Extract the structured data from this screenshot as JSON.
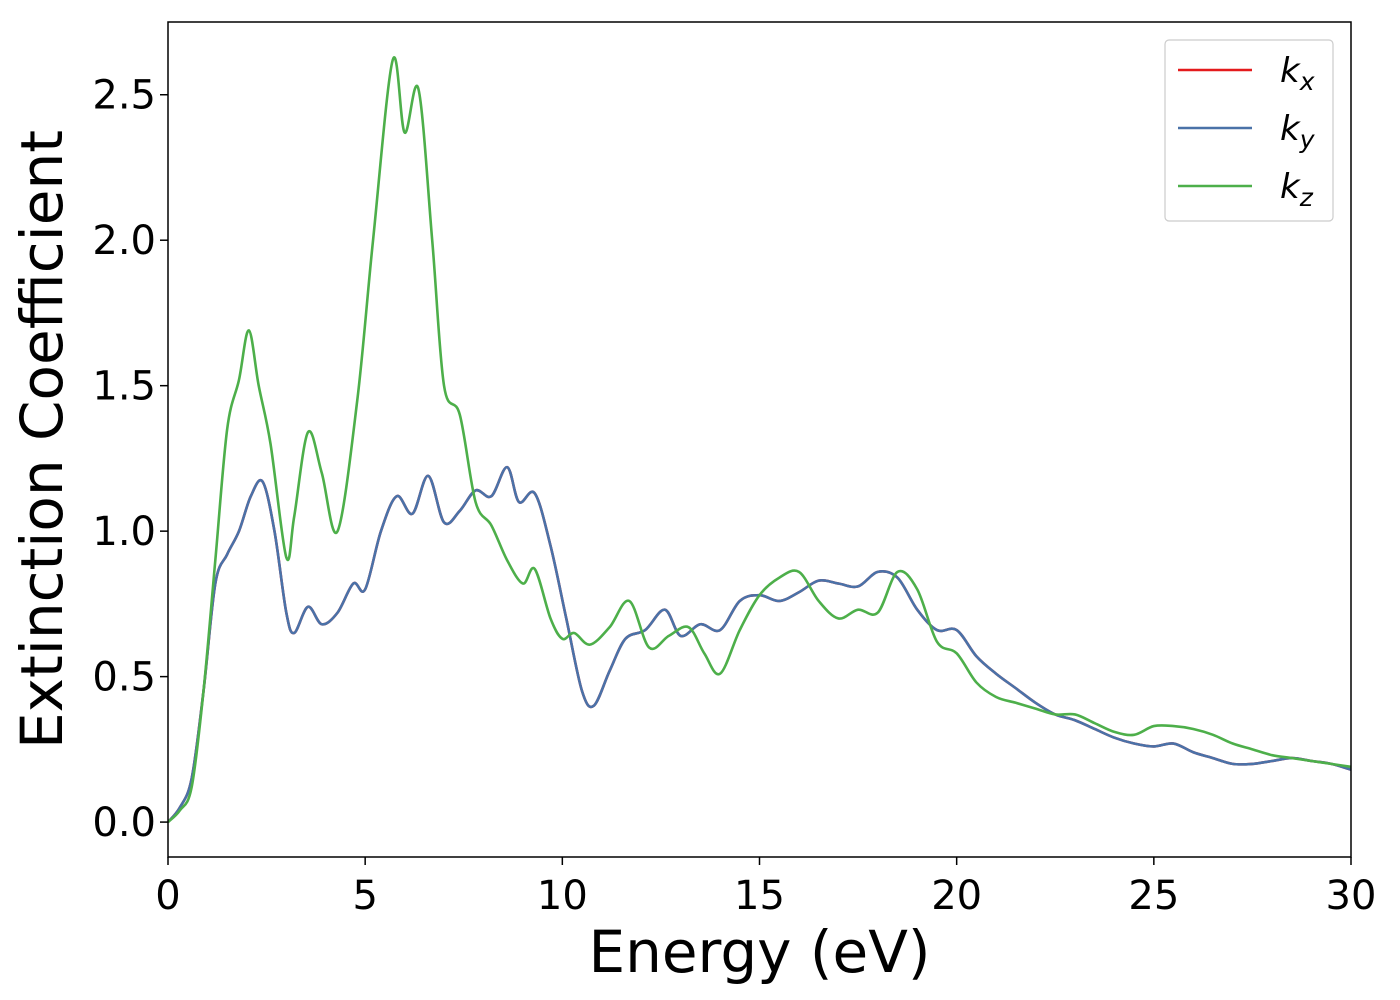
{
  "chart_data": {
    "type": "line",
    "title": "",
    "xlabel": "Energy (eV)",
    "ylabel": "Extinction Coefficient",
    "xlim": [
      0,
      30
    ],
    "ylim": [
      -0.12,
      2.75
    ],
    "grid": false,
    "legend_position": "top-right",
    "x_ticks": [
      0,
      5,
      10,
      15,
      20,
      25,
      30
    ],
    "x_tick_labels": [
      "0",
      "5",
      "10",
      "15",
      "20",
      "25",
      "30"
    ],
    "y_ticks": [
      0.0,
      0.5,
      1.0,
      1.5,
      2.0,
      2.5
    ],
    "y_tick_labels": [
      "0.0",
      "0.5",
      "1.0",
      "1.5",
      "2.0",
      "2.5"
    ],
    "series": [
      {
        "name": "k",
        "subscript": "x",
        "color": "#e41a1c",
        "x": [
          0,
          0.3,
          0.6,
          0.9,
          1.2,
          1.5,
          1.8,
          2.1,
          2.4,
          2.7,
          3.0,
          3.2,
          3.55,
          3.9,
          4.3,
          4.7,
          5.0,
          5.4,
          5.8,
          6.2,
          6.6,
          7.0,
          7.4,
          7.8,
          8.2,
          8.6,
          8.9,
          9.3,
          9.7,
          10.1,
          10.5,
          10.8,
          11.2,
          11.6,
          12.1,
          12.6,
          13.0,
          13.5,
          14.0,
          14.5,
          15.0,
          15.5,
          16.0,
          16.5,
          17.0,
          17.5,
          18.0,
          18.5,
          19.0,
          19.5,
          20.0,
          20.5,
          21.0,
          21.5,
          22.0,
          22.5,
          23.0,
          23.5,
          24.0,
          24.5,
          25.0,
          25.5,
          26.0,
          26.5,
          27.0,
          27.5,
          28.0,
          28.5,
          29.0,
          29.5,
          30.0
        ],
        "y": [
          0.0,
          0.05,
          0.15,
          0.45,
          0.82,
          0.92,
          1.0,
          1.12,
          1.17,
          1.0,
          0.72,
          0.65,
          0.74,
          0.68,
          0.72,
          0.82,
          0.8,
          1.0,
          1.12,
          1.06,
          1.19,
          1.03,
          1.07,
          1.14,
          1.12,
          1.22,
          1.1,
          1.13,
          0.95,
          0.7,
          0.45,
          0.4,
          0.52,
          0.63,
          0.66,
          0.73,
          0.64,
          0.68,
          0.66,
          0.76,
          0.78,
          0.76,
          0.79,
          0.83,
          0.82,
          0.81,
          0.86,
          0.84,
          0.73,
          0.66,
          0.66,
          0.57,
          0.51,
          0.46,
          0.41,
          0.37,
          0.35,
          0.32,
          0.29,
          0.27,
          0.26,
          0.27,
          0.24,
          0.22,
          0.2,
          0.2,
          0.21,
          0.22,
          0.21,
          0.2,
          0.18
        ]
      },
      {
        "name": "k",
        "subscript": "y",
        "color": "#4a72a8",
        "x": [
          0,
          0.3,
          0.6,
          0.9,
          1.2,
          1.5,
          1.8,
          2.1,
          2.4,
          2.7,
          3.0,
          3.2,
          3.55,
          3.9,
          4.3,
          4.7,
          5.0,
          5.4,
          5.8,
          6.2,
          6.6,
          7.0,
          7.4,
          7.8,
          8.2,
          8.6,
          8.9,
          9.3,
          9.7,
          10.1,
          10.5,
          10.8,
          11.2,
          11.6,
          12.1,
          12.6,
          13.0,
          13.5,
          14.0,
          14.5,
          15.0,
          15.5,
          16.0,
          16.5,
          17.0,
          17.5,
          18.0,
          18.5,
          19.0,
          19.5,
          20.0,
          20.5,
          21.0,
          21.5,
          22.0,
          22.5,
          23.0,
          23.5,
          24.0,
          24.5,
          25.0,
          25.5,
          26.0,
          26.5,
          27.0,
          27.5,
          28.0,
          28.5,
          29.0,
          29.5,
          30.0
        ],
        "y": [
          0.0,
          0.05,
          0.15,
          0.45,
          0.82,
          0.92,
          1.0,
          1.12,
          1.17,
          1.0,
          0.72,
          0.65,
          0.74,
          0.68,
          0.72,
          0.82,
          0.8,
          1.0,
          1.12,
          1.06,
          1.19,
          1.03,
          1.07,
          1.14,
          1.12,
          1.22,
          1.1,
          1.13,
          0.95,
          0.7,
          0.45,
          0.4,
          0.52,
          0.63,
          0.66,
          0.73,
          0.64,
          0.68,
          0.66,
          0.76,
          0.78,
          0.76,
          0.79,
          0.83,
          0.82,
          0.81,
          0.86,
          0.84,
          0.73,
          0.66,
          0.66,
          0.57,
          0.51,
          0.46,
          0.41,
          0.37,
          0.35,
          0.32,
          0.29,
          0.27,
          0.26,
          0.27,
          0.24,
          0.22,
          0.2,
          0.2,
          0.21,
          0.22,
          0.21,
          0.2,
          0.18
        ]
      },
      {
        "name": "k",
        "subscript": "z",
        "color": "#4daf4a",
        "x": [
          0,
          0.3,
          0.6,
          0.9,
          1.2,
          1.5,
          1.8,
          2.05,
          2.3,
          2.6,
          3.0,
          3.2,
          3.55,
          3.9,
          4.3,
          4.8,
          5.2,
          5.7,
          6.0,
          6.35,
          6.7,
          7.0,
          7.4,
          7.8,
          8.2,
          8.6,
          9.0,
          9.3,
          9.7,
          10.0,
          10.3,
          10.7,
          11.2,
          11.7,
          12.2,
          12.7,
          13.2,
          13.6,
          14.0,
          14.5,
          15.0,
          15.5,
          16.0,
          16.5,
          17.0,
          17.5,
          18.0,
          18.5,
          19.0,
          19.5,
          20.0,
          20.5,
          21.0,
          21.5,
          22.0,
          22.5,
          23.0,
          23.5,
          24.0,
          24.5,
          25.0,
          25.5,
          26.0,
          26.5,
          27.0,
          27.5,
          28.0,
          28.5,
          29.0,
          29.5,
          30.0
        ],
        "y": [
          0.0,
          0.04,
          0.12,
          0.45,
          0.9,
          1.35,
          1.52,
          1.69,
          1.5,
          1.3,
          0.91,
          1.05,
          1.34,
          1.2,
          1.0,
          1.45,
          2.0,
          2.62,
          2.37,
          2.52,
          2.0,
          1.5,
          1.4,
          1.1,
          1.02,
          0.9,
          0.82,
          0.87,
          0.7,
          0.63,
          0.65,
          0.61,
          0.67,
          0.76,
          0.6,
          0.64,
          0.67,
          0.58,
          0.51,
          0.66,
          0.78,
          0.84,
          0.86,
          0.76,
          0.7,
          0.73,
          0.72,
          0.86,
          0.8,
          0.62,
          0.58,
          0.48,
          0.43,
          0.41,
          0.39,
          0.37,
          0.37,
          0.34,
          0.31,
          0.3,
          0.33,
          0.33,
          0.32,
          0.3,
          0.27,
          0.25,
          0.23,
          0.22,
          0.21,
          0.2,
          0.19
        ]
      }
    ]
  }
}
